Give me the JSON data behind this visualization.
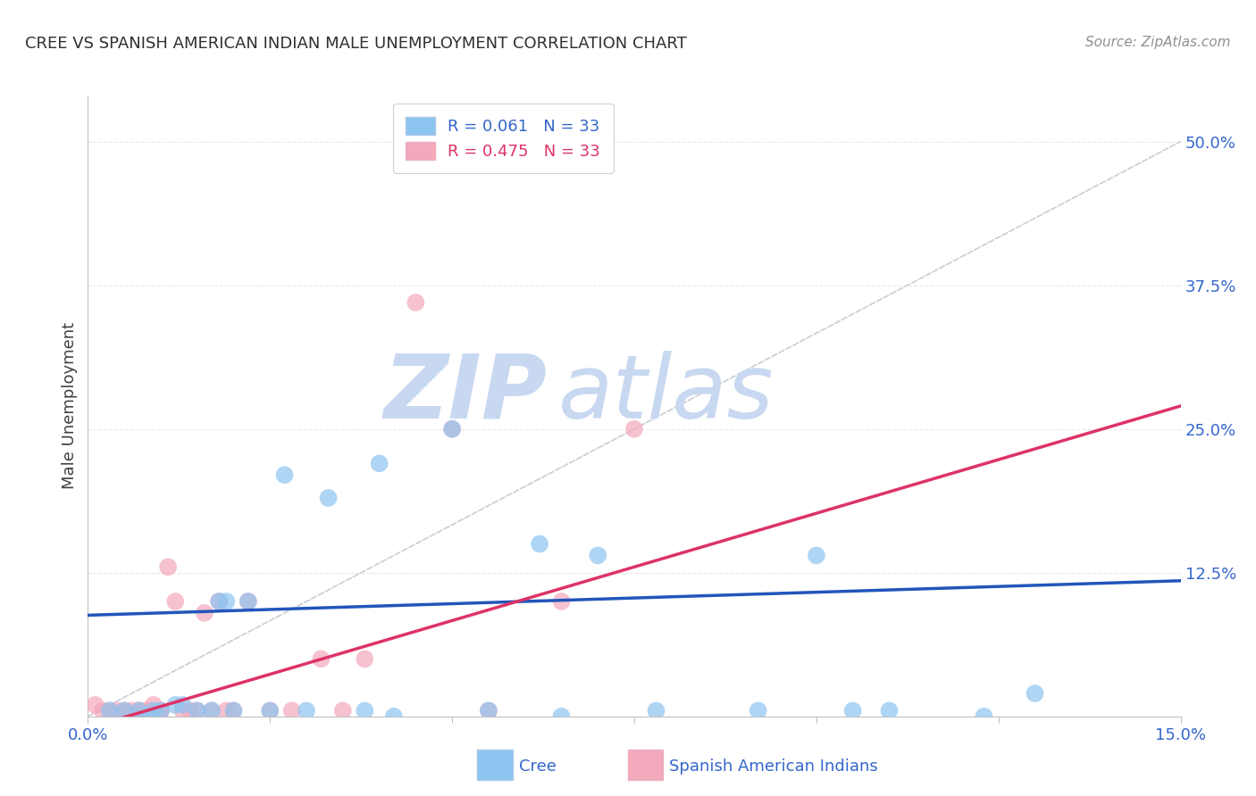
{
  "title": "CREE VS SPANISH AMERICAN INDIAN MALE UNEMPLOYMENT CORRELATION CHART",
  "source": "Source: ZipAtlas.com",
  "ylabel": "Male Unemployment",
  "x_min": 0.0,
  "x_max": 0.15,
  "y_min": 0.0,
  "y_max": 0.54,
  "x_ticks": [
    0.0,
    0.025,
    0.05,
    0.075,
    0.1,
    0.125,
    0.15
  ],
  "x_tick_labels": [
    "0.0%",
    "",
    "",
    "",
    "",
    "",
    "15.0%"
  ],
  "y_ticks_right": [
    0.0,
    0.125,
    0.25,
    0.375,
    0.5
  ],
  "y_tick_labels_right": [
    "",
    "12.5%",
    "25.0%",
    "37.5%",
    "50.0%"
  ],
  "cree_color": "#8EC4F0",
  "spanish_color": "#F4A8BC",
  "cree_line_color": "#2255BB",
  "spanish_line_color": "#DD3366",
  "ref_line_color": "#C8CDD4",
  "grid_color": "#E8E8E8",
  "legend_cree_R": "R = 0.061",
  "legend_cree_N": "N = 33",
  "legend_spanish_R": "R = 0.475",
  "legend_spanish_N": "N = 33",
  "watermark_color": "#C8D8F0",
  "cree_x": [
    0.003,
    0.005,
    0.007,
    0.008,
    0.009,
    0.01,
    0.012,
    0.013,
    0.015,
    0.017,
    0.018,
    0.019,
    0.02,
    0.022,
    0.025,
    0.027,
    0.03,
    0.033,
    0.038,
    0.04,
    0.042,
    0.05,
    0.055,
    0.062,
    0.065,
    0.07,
    0.078,
    0.092,
    0.1,
    0.105,
    0.11,
    0.123,
    0.13
  ],
  "cree_y": [
    0.005,
    0.005,
    0.005,
    0.0,
    0.005,
    0.005,
    0.01,
    0.01,
    0.005,
    0.005,
    0.1,
    0.1,
    0.005,
    0.1,
    0.005,
    0.21,
    0.005,
    0.19,
    0.005,
    0.22,
    0.0,
    0.25,
    0.005,
    0.15,
    0.0,
    0.14,
    0.005,
    0.005,
    0.14,
    0.005,
    0.005,
    0.0,
    0.02
  ],
  "spanish_x": [
    0.001,
    0.002,
    0.003,
    0.004,
    0.005,
    0.006,
    0.007,
    0.007,
    0.008,
    0.009,
    0.01,
    0.01,
    0.011,
    0.012,
    0.013,
    0.014,
    0.015,
    0.016,
    0.017,
    0.018,
    0.019,
    0.02,
    0.022,
    0.025,
    0.028,
    0.032,
    0.035,
    0.038,
    0.045,
    0.05,
    0.055,
    0.065,
    0.075
  ],
  "spanish_y": [
    0.01,
    0.005,
    0.005,
    0.005,
    0.005,
    0.005,
    0.005,
    0.005,
    0.005,
    0.01,
    0.005,
    0.005,
    0.13,
    0.1,
    0.005,
    0.005,
    0.005,
    0.09,
    0.005,
    0.1,
    0.005,
    0.005,
    0.1,
    0.005,
    0.005,
    0.05,
    0.005,
    0.05,
    0.36,
    0.25,
    0.005,
    0.1,
    0.25
  ],
  "cree_line_x": [
    0.0,
    0.15
  ],
  "cree_line_y": [
    0.088,
    0.118
  ],
  "spanish_line_x": [
    0.0,
    0.15
  ],
  "spanish_line_y": [
    -0.01,
    0.27
  ]
}
